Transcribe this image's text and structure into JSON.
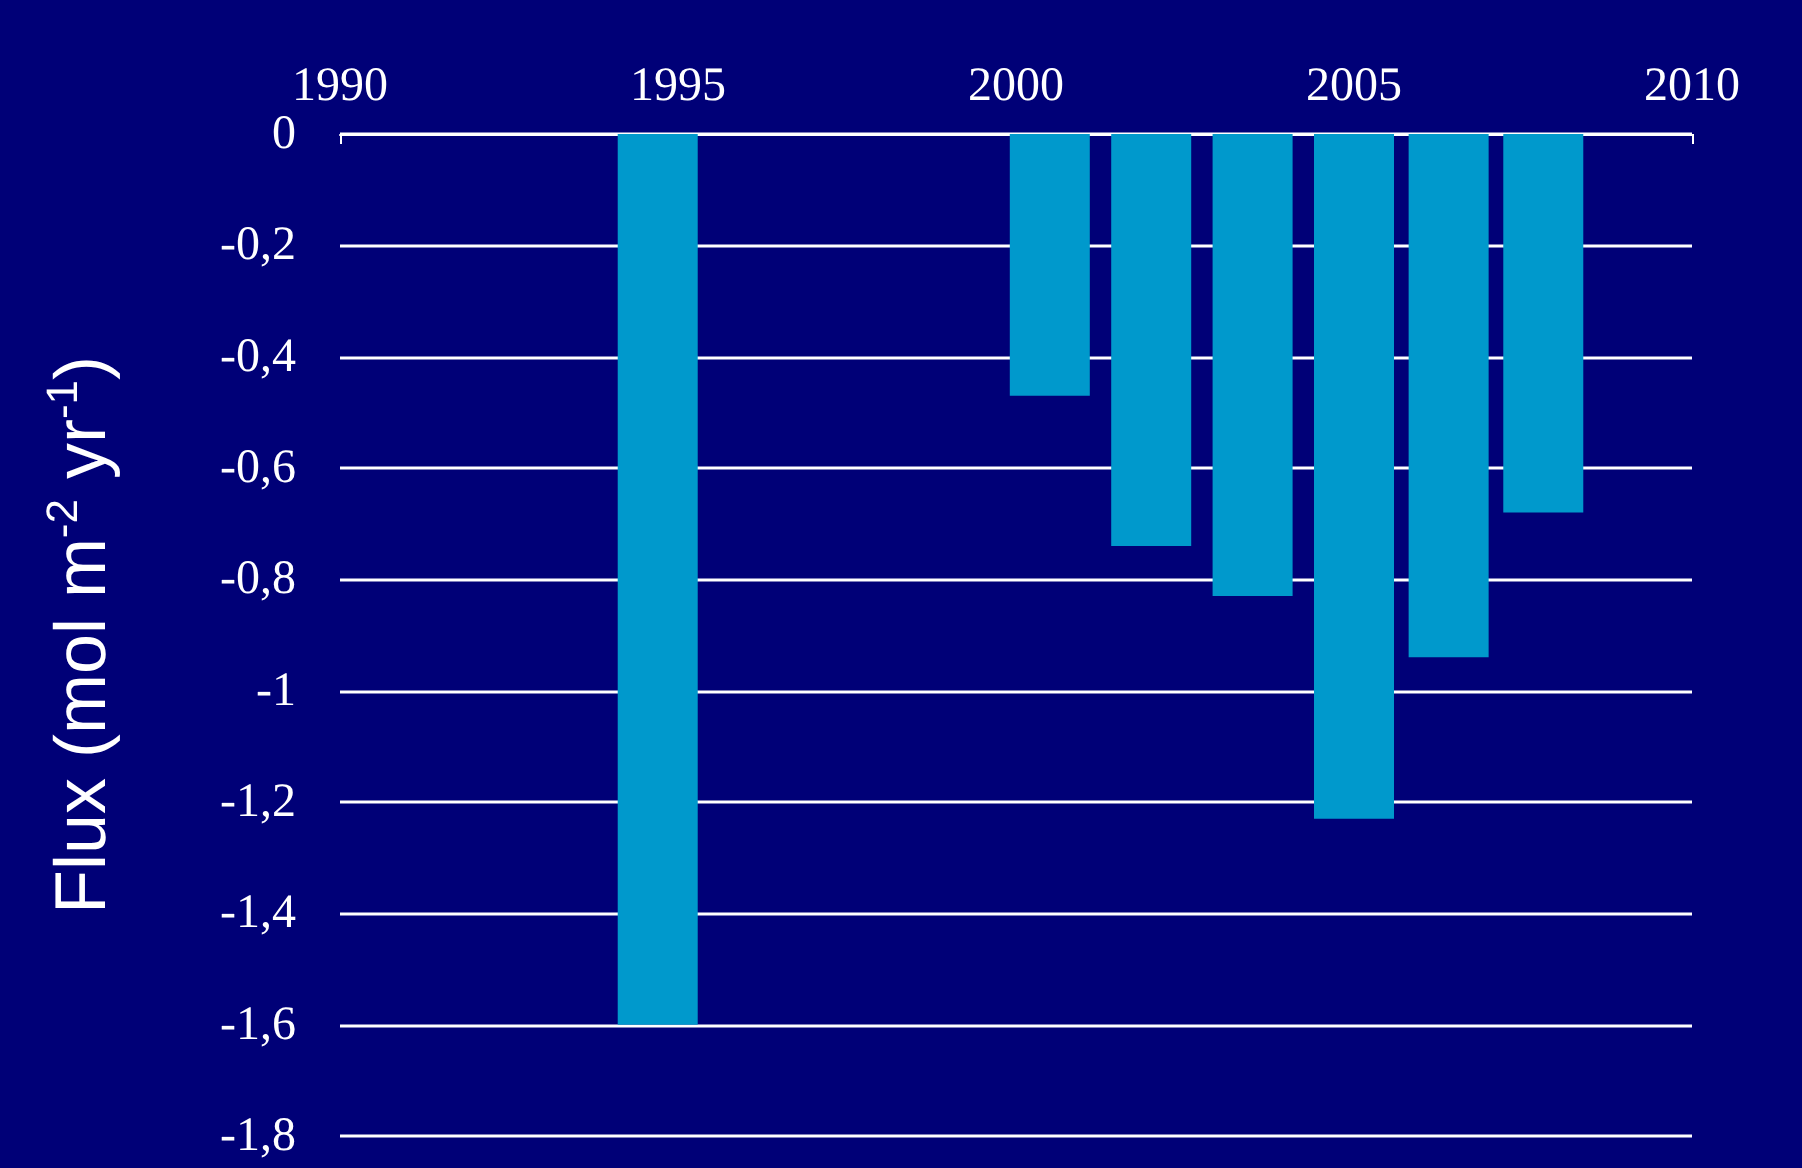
{
  "chart_data": {
    "type": "bar",
    "ylabel": "Flux (mol m$^{-2}$ yr$^{-1}$)",
    "x": [
      1994.7,
      2000.5,
      2002,
      2003.5,
      2005,
      2006.4,
      2007.8
    ],
    "values": [
      -1.6,
      -0.47,
      -0.74,
      -0.83,
      -1.23,
      -0.94,
      -0.68
    ],
    "color": "#0099cc",
    "xlim": [
      1990,
      2010
    ],
    "xticks": [
      1990,
      1995,
      2000,
      2005,
      2010
    ],
    "ylim": [
      -1.8,
      0
    ],
    "yticks": [
      {
        "value": -1.8,
        "label": "-1,8"
      },
      {
        "value": -1.6,
        "label": "-1,6"
      },
      {
        "value": -1.4,
        "label": "-1,4"
      },
      {
        "value": -1.2,
        "label": "-1,2"
      },
      -1,
      {
        "value": -0.8,
        "label": "-0,8"
      },
      {
        "value": -0.6,
        "label": "-0,6"
      },
      {
        "value": -0.4,
        "label": "-0,4"
      },
      {
        "value": -0.2,
        "label": "-0,2"
      },
      0
    ],
    "grid": "y"
  }
}
